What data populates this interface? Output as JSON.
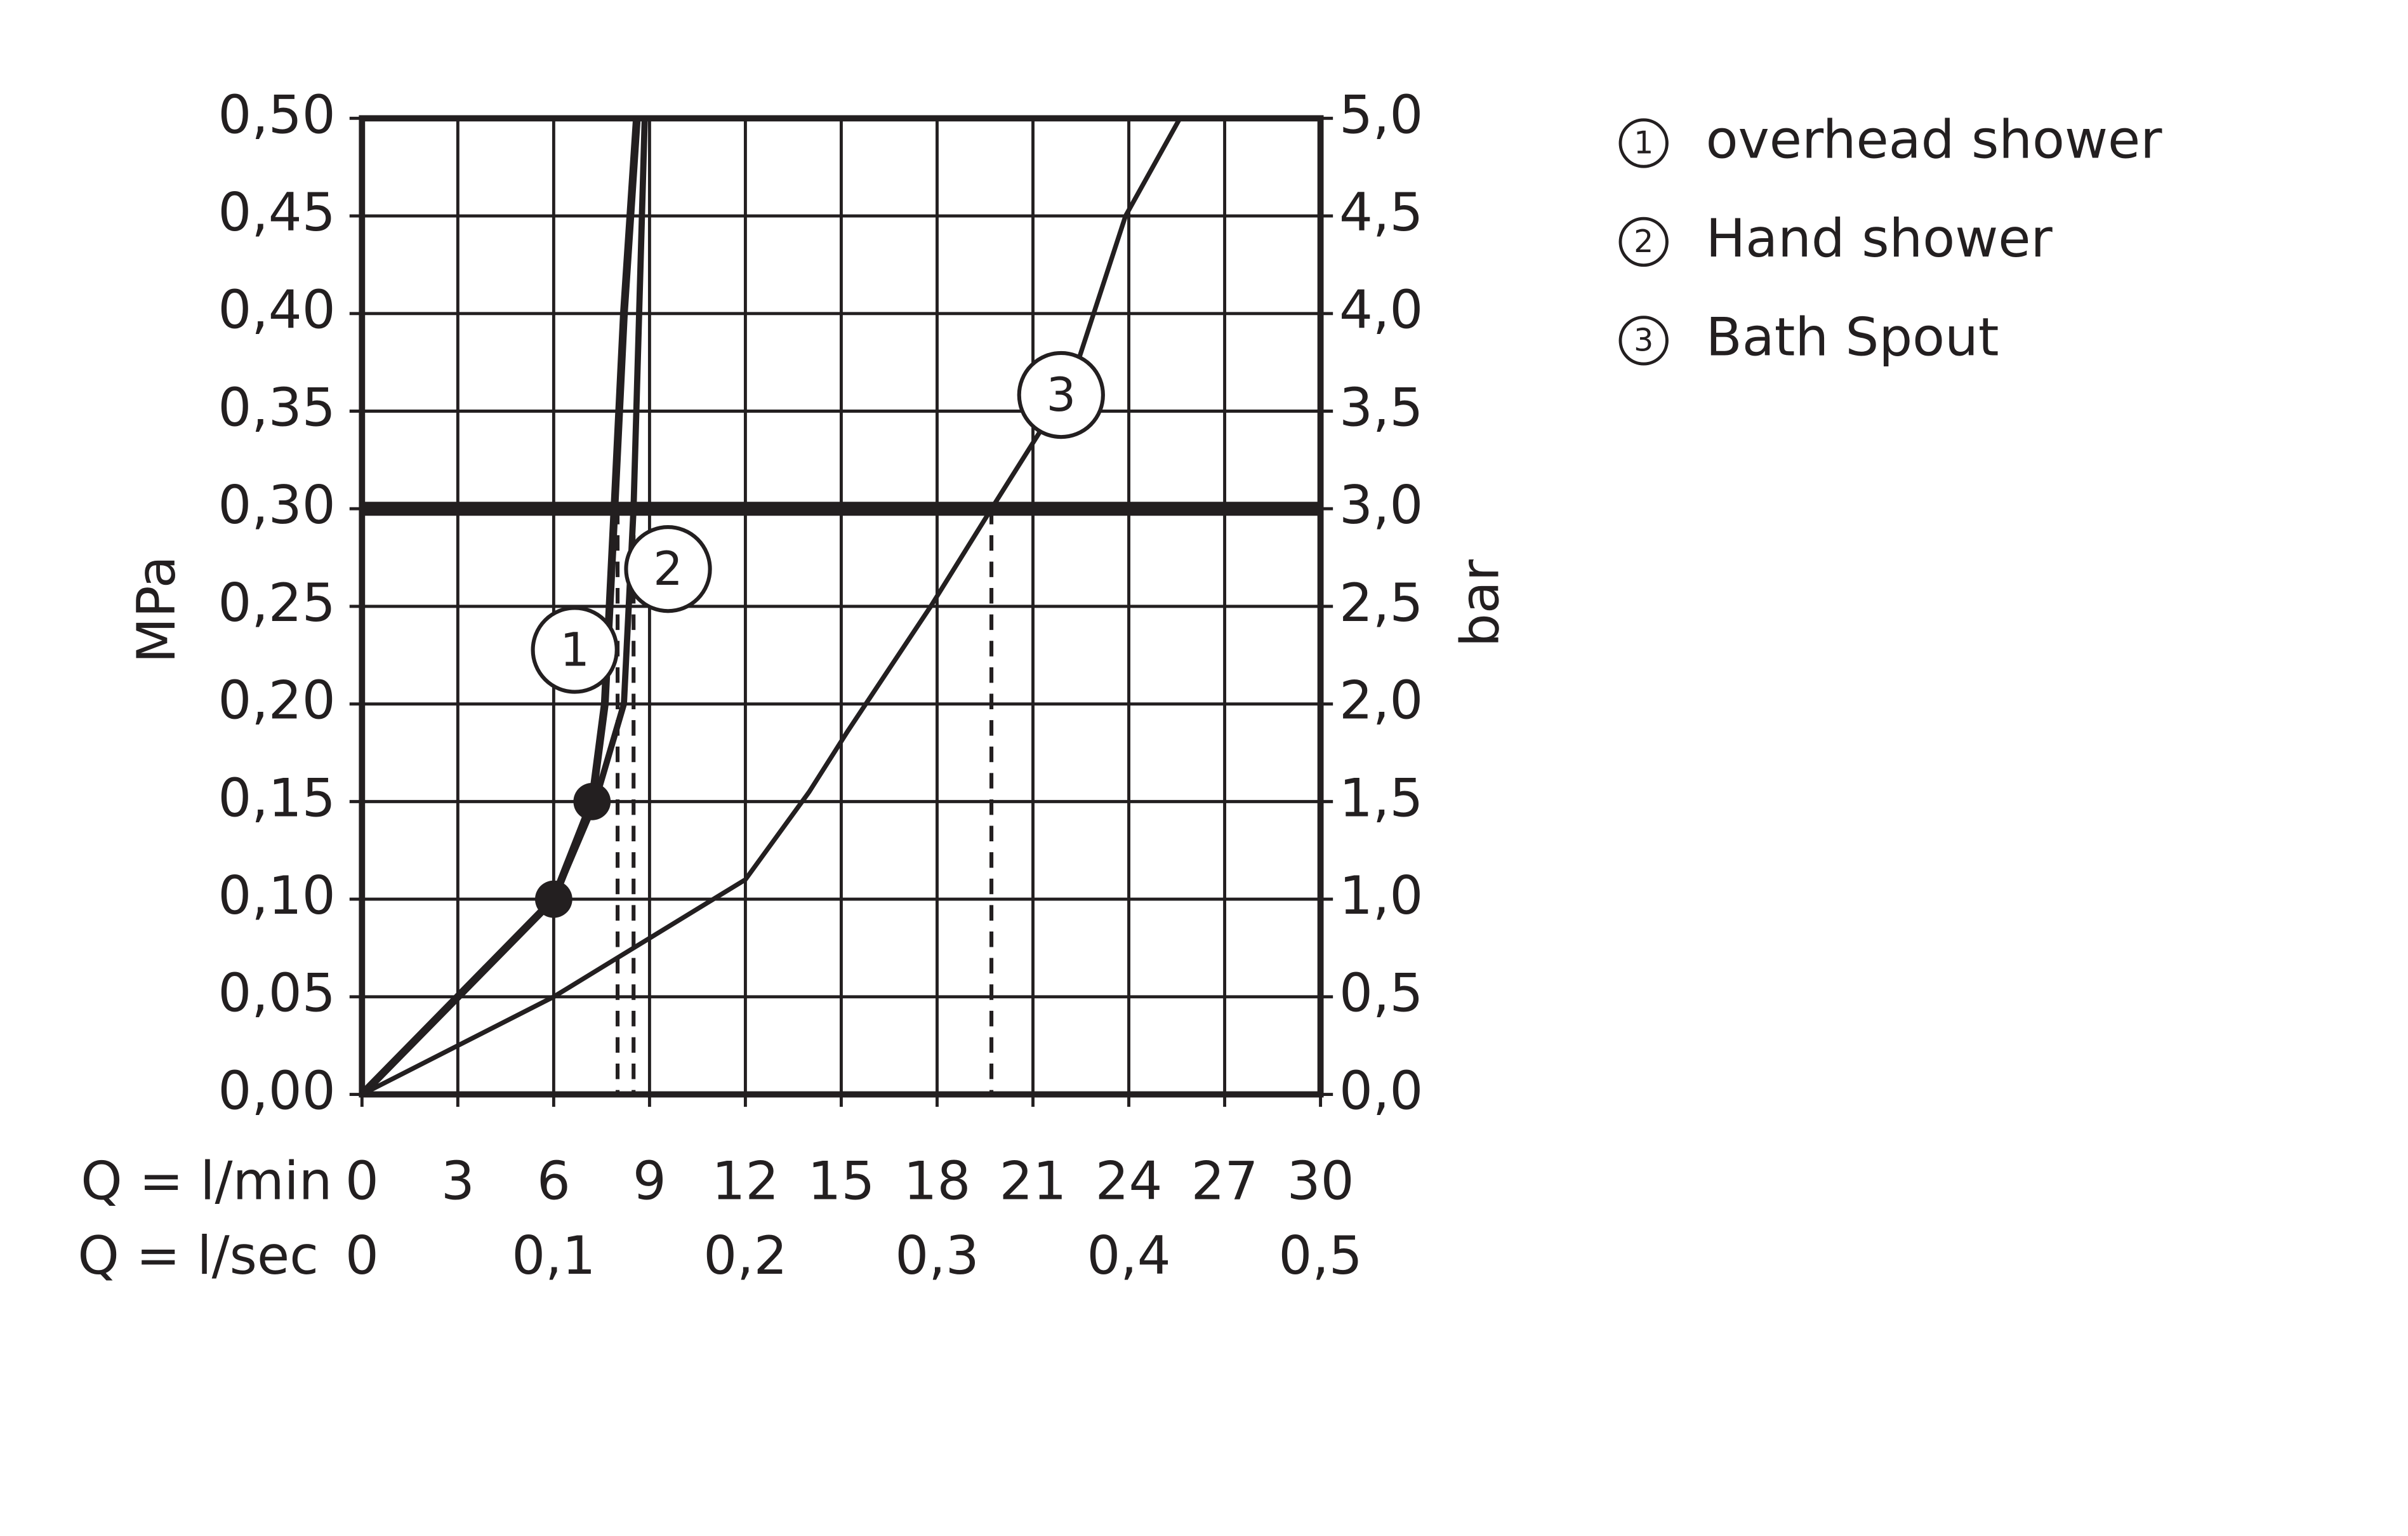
{
  "chart_data": {
    "type": "line",
    "x_label": "Q = l/min",
    "x2_label": "Q = l/sec",
    "y_label": "MPa",
    "y2_label": "bar",
    "xlim": [
      0,
      30
    ],
    "xticks": [
      0,
      3,
      6,
      9,
      12,
      15,
      18,
      21,
      24,
      27,
      30
    ],
    "x2lim": [
      0,
      0.5
    ],
    "x2ticks": [
      0,
      {
        "value": 0.1,
        "label": "0,1"
      },
      {
        "value": 0.2,
        "label": "0,2"
      },
      {
        "value": 0.3,
        "label": "0,3"
      },
      {
        "value": 0.4,
        "label": "0,4"
      },
      {
        "value": 0.5,
        "label": "0,5"
      }
    ],
    "ylim": [
      0,
      0.5
    ],
    "yticks": [
      {
        "value": 0,
        "label": "0,00"
      },
      {
        "value": 0.05,
        "label": "0,05"
      },
      {
        "value": 0.1,
        "label": "0,10"
      },
      {
        "value": 0.15,
        "label": "0,15"
      },
      {
        "value": 0.2,
        "label": "0,20"
      },
      {
        "value": 0.25,
        "label": "0,25"
      },
      {
        "value": 0.3,
        "label": "0,30"
      },
      {
        "value": 0.35,
        "label": "0,35"
      },
      {
        "value": 0.4,
        "label": "0,40"
      },
      {
        "value": 0.45,
        "label": "0,45"
      },
      {
        "value": 0.5,
        "label": "0,50"
      }
    ],
    "y2lim": [
      0,
      5
    ],
    "y2ticks": [
      {
        "value": 0,
        "label": "0,0"
      },
      {
        "value": 0.5,
        "label": "0,5"
      },
      {
        "value": 1,
        "label": "1,0"
      },
      {
        "value": 1.5,
        "label": "1,5"
      },
      {
        "value": 2,
        "label": "2,0"
      },
      {
        "value": 2.5,
        "label": "2,5"
      },
      {
        "value": 3,
        "label": "3,0"
      },
      {
        "value": 3.5,
        "label": "3,5"
      },
      {
        "value": 4,
        "label": "4,0"
      },
      {
        "value": 4.5,
        "label": "4,5"
      },
      {
        "value": 5,
        "label": "5,0"
      }
    ],
    "grid": true,
    "reference_line": 0.3,
    "drop_lines": [
      8.0,
      8.5,
      19.7
    ],
    "series": [
      {
        "name": "overhead shower",
        "number": "1",
        "color": "#231f20",
        "x": [
          0,
          3,
          6,
          7.2,
          7.6,
          7.9,
          8.2,
          8.6
        ],
        "values": [
          0,
          0.05,
          0.1,
          0.15,
          0.2,
          0.3,
          0.4,
          0.5
        ]
      },
      {
        "name": "Hand shower",
        "number": "2",
        "color": "#231f20",
        "x": [
          0,
          3,
          6,
          7.3,
          8.2,
          8.5,
          8.85
        ],
        "values": [
          0,
          0.05,
          0.1,
          0.15,
          0.2,
          0.3,
          0.5
        ]
      },
      {
        "name": "Bath Spout",
        "number": "3",
        "color": "#231f20",
        "x": [
          0,
          6,
          12,
          14,
          15.2,
          17.8,
          19.7,
          22.2,
          23.9,
          25.6
        ],
        "values": [
          0,
          0.05,
          0.11,
          0.155,
          0.186,
          0.25,
          0.3,
          0.365,
          0.45,
          0.5
        ]
      }
    ]
  }
}
